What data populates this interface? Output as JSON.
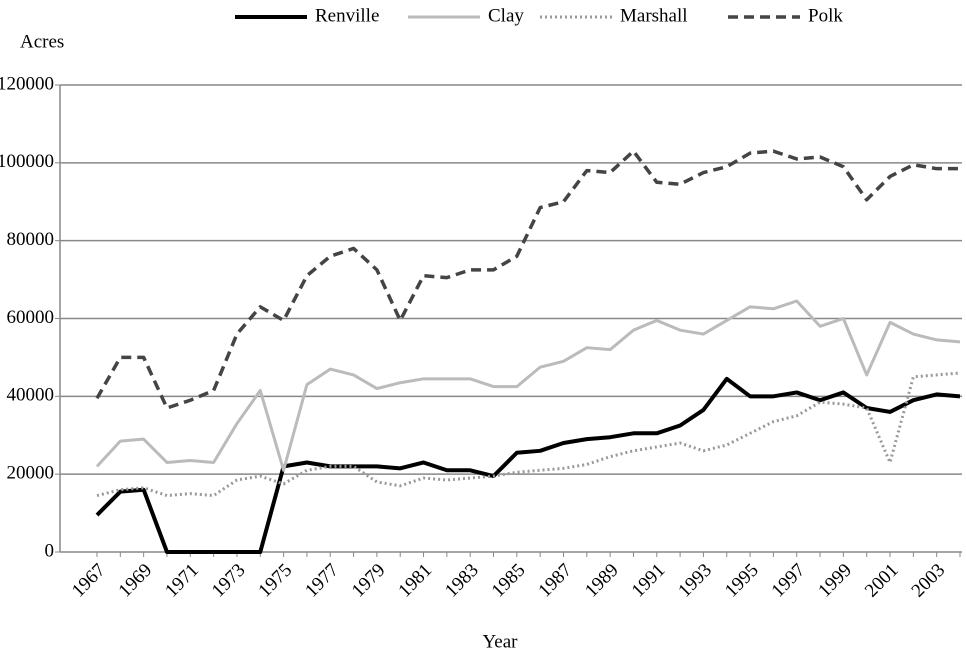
{
  "chart_data": {
    "type": "line",
    "x_label": "Year",
    "y_label": "Acres",
    "categories": [
      "1967",
      null,
      "1969",
      null,
      "1971",
      null,
      "1973",
      null,
      "1975",
      null,
      "1977",
      null,
      "1979",
      null,
      "1981",
      null,
      "1983",
      null,
      "1985",
      null,
      "1987",
      null,
      "1989",
      null,
      "1991",
      null,
      "1993",
      null,
      "1995",
      null,
      "1997",
      null,
      "1999",
      null,
      "2001",
      null,
      "2003",
      null
    ],
    "series": [
      {
        "name": "Renville",
        "color": "#000000",
        "dash": "solid",
        "width": 4,
        "values": [
          9500,
          15500,
          16000,
          0,
          0,
          0,
          0,
          0,
          22000,
          23000,
          22000,
          22000,
          22000,
          21500,
          23000,
          21000,
          21000,
          19500,
          25500,
          26000,
          28000,
          29000,
          29500,
          30500,
          30500,
          32500,
          36500,
          44500,
          40000,
          40000,
          41000,
          39000,
          41000,
          37000,
          36000,
          39000,
          40500,
          40000
        ]
      },
      {
        "name": "Clay",
        "color": "#bbbbbb",
        "dash": "solid",
        "width": 3,
        "values": [
          22000,
          28500,
          29000,
          23000,
          23500,
          23000,
          33000,
          41500,
          21000,
          43000,
          47000,
          45500,
          42000,
          43500,
          44500,
          44500,
          44500,
          42500,
          42500,
          47500,
          49000,
          52500,
          52000,
          57000,
          59500,
          57000,
          56000,
          59500,
          63000,
          62500,
          64500,
          58000,
          60000,
          45500,
          59000,
          56000,
          54500,
          54000
        ]
      },
      {
        "name": "Marshall",
        "color": "#999999",
        "dash": "dotted",
        "width": 3,
        "values": [
          14500,
          16000,
          16500,
          14500,
          15000,
          14500,
          18500,
          19500,
          17500,
          21000,
          22000,
          22000,
          18000,
          17000,
          19000,
          18500,
          19000,
          19500,
          20500,
          21000,
          21500,
          22500,
          24500,
          26000,
          27000,
          28000,
          26000,
          27500,
          30500,
          33500,
          35000,
          38500,
          38000,
          37000,
          23000,
          45000,
          45500,
          46000
        ]
      },
      {
        "name": "Polk",
        "color": "#444444",
        "dash": "dashed",
        "width": 3.5,
        "values": [
          39500,
          50000,
          50000,
          37000,
          39000,
          41500,
          56000,
          63000,
          59500,
          71000,
          76000,
          78000,
          72500,
          59500,
          71000,
          70500,
          72500,
          72500,
          76000,
          88500,
          90000,
          98000,
          97500,
          103000,
          95000,
          94500,
          97500,
          99000,
          102500,
          103000,
          101000,
          101500,
          99000,
          90500,
          96500,
          99500,
          98500,
          98500
        ]
      }
    ],
    "ylim": [
      0,
      120000
    ],
    "yticks": [
      0,
      20000,
      40000,
      60000,
      80000,
      100000,
      120000
    ],
    "grid": true,
    "legend": "top"
  }
}
